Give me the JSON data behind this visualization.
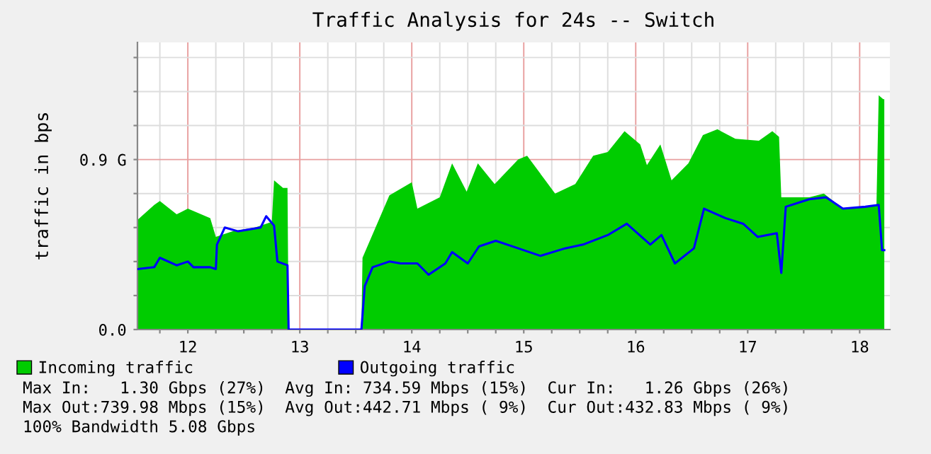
{
  "chart_data": {
    "type": "area",
    "title": "Traffic Analysis for 24s -- Switch",
    "ylabel": "traffic in bps",
    "xlim": [
      11.55,
      18.27
    ],
    "ylim": [
      0,
      1.52
    ],
    "xticks": [
      {
        "value": 11.75,
        "label": null
      },
      12,
      {
        "value": 12.25,
        "label": null
      },
      {
        "value": 12.5,
        "label": null
      },
      {
        "value": 12.75,
        "label": null
      },
      13,
      {
        "value": 13.25,
        "label": null
      },
      {
        "value": 13.5,
        "label": null
      },
      {
        "value": 13.75,
        "label": null
      },
      14,
      {
        "value": 14.25,
        "label": null
      },
      {
        "value": 14.5,
        "label": null
      },
      {
        "value": 14.75,
        "label": null
      },
      15,
      {
        "value": 15.25,
        "label": null
      },
      {
        "value": 15.5,
        "label": null
      },
      {
        "value": 15.75,
        "label": null
      },
      16,
      {
        "value": 16.25,
        "label": null
      },
      {
        "value": 16.5,
        "label": null
      },
      {
        "value": 16.75,
        "label": null
      },
      17,
      {
        "value": 17.25,
        "label": null
      },
      {
        "value": 17.5,
        "label": null
      },
      {
        "value": 17.75,
        "label": null
      },
      18
    ],
    "yticks": [
      {
        "value": 0,
        "label": "0.0"
      },
      {
        "value": 0.18,
        "label": null
      },
      {
        "value": 0.36,
        "label": null
      },
      {
        "value": 0.54,
        "label": null
      },
      {
        "value": 0.72,
        "label": null
      },
      {
        "value": 0.9,
        "label": "0.9 G"
      },
      {
        "value": 1.08,
        "label": null
      },
      {
        "value": 1.26,
        "label": null
      },
      {
        "value": 1.44,
        "label": null
      }
    ],
    "grid": true,
    "legend": "bottom",
    "series": [
      {
        "name": "Incoming traffic",
        "color": "#00cc00",
        "x": [
          11.55,
          11.7,
          11.75,
          11.9,
          12.0,
          12.2,
          12.25,
          12.4,
          12.6,
          12.75,
          12.77,
          12.85,
          12.89,
          12.9,
          13.55,
          13.56,
          13.8,
          14.0,
          14.05,
          14.25,
          14.36,
          14.49,
          14.59,
          14.74,
          14.95,
          15.03,
          15.28,
          15.46,
          15.62,
          15.75,
          15.9,
          16.04,
          16.1,
          16.22,
          16.32,
          16.47,
          16.6,
          16.73,
          16.89,
          17.1,
          17.22,
          17.28,
          17.3,
          17.55,
          17.68,
          17.85,
          18.15,
          18.17,
          18.21,
          18.22
        ],
        "values": [
          0.58,
          0.66,
          0.68,
          0.61,
          0.64,
          0.59,
          0.49,
          0.52,
          0.54,
          0.57,
          0.79,
          0.75,
          0.75,
          0,
          0,
          0.38,
          0.71,
          0.78,
          0.64,
          0.7,
          0.88,
          0.73,
          0.88,
          0.77,
          0.9,
          0.92,
          0.72,
          0.77,
          0.92,
          0.94,
          1.05,
          0.98,
          0.87,
          0.98,
          0.79,
          0.88,
          1.03,
          1.06,
          1.01,
          1.0,
          1.05,
          1.02,
          0.7,
          0.7,
          0.72,
          0.64,
          0.66,
          1.24,
          1.22,
          1.22
        ]
      },
      {
        "name": "Outgoing traffic",
        "type": "line",
        "color": "#0000ff",
        "x": [
          11.55,
          11.7,
          11.75,
          11.9,
          12.0,
          12.05,
          12.2,
          12.25,
          12.26,
          12.33,
          12.45,
          12.65,
          12.7,
          12.77,
          12.8,
          12.89,
          12.9,
          13.55,
          13.58,
          13.65,
          13.8,
          13.9,
          14.05,
          14.15,
          14.3,
          14.36,
          14.5,
          14.6,
          14.75,
          14.95,
          15.15,
          15.37,
          15.53,
          15.75,
          15.92,
          16.13,
          16.23,
          16.35,
          16.52,
          16.61,
          16.8,
          16.96,
          17.09,
          17.26,
          17.3,
          17.34,
          17.55,
          17.7,
          17.85,
          18.05,
          18.17,
          18.2,
          18.22
        ],
        "values": [
          0.32,
          0.33,
          0.38,
          0.34,
          0.36,
          0.33,
          0.33,
          0.32,
          0.45,
          0.54,
          0.52,
          0.54,
          0.6,
          0.55,
          0.36,
          0.34,
          0,
          0,
          0.23,
          0.33,
          0.36,
          0.35,
          0.35,
          0.29,
          0.35,
          0.41,
          0.35,
          0.44,
          0.47,
          0.43,
          0.39,
          0.43,
          0.45,
          0.5,
          0.56,
          0.45,
          0.5,
          0.35,
          0.43,
          0.64,
          0.59,
          0.56,
          0.49,
          0.51,
          0.3,
          0.65,
          0.69,
          0.7,
          0.64,
          0.65,
          0.66,
          0.42,
          0.42
        ]
      }
    ],
    "annotations": [
      "Max In:   1.30 Gbps (27%)  Avg In: 734.59 Mbps (15%)  Cur In:   1.26 Gbps (26%)",
      "Max Out:739.98 Mbps (15%)  Avg Out:442.71 Mbps ( 9%)  Cur Out:432.83 Mbps ( 9%)",
      "100% Bandwidth 5.08 Gbps"
    ]
  }
}
